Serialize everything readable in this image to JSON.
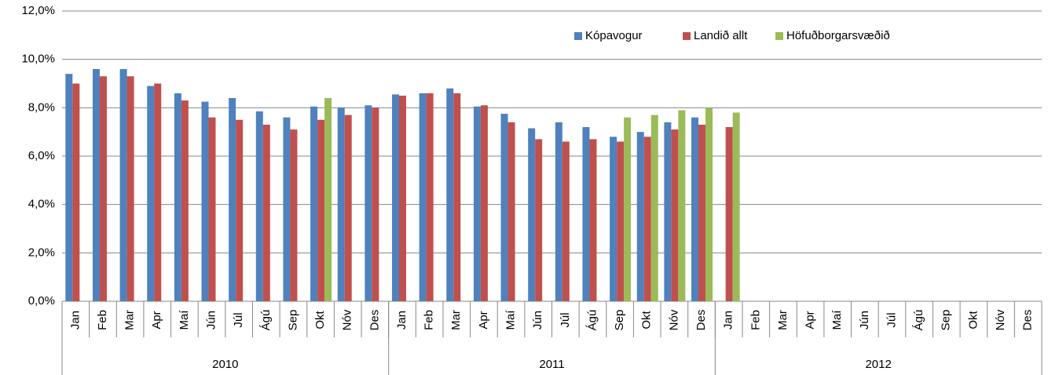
{
  "chart_data": {
    "type": "bar",
    "categories": [
      "Jan",
      "Feb",
      "Mar",
      "Apr",
      "Maí",
      "Jún",
      "Júl",
      "Ágú",
      "Sep",
      "Okt",
      "Nóv",
      "Des",
      "Jan",
      "Feb",
      "Mar",
      "Apr",
      "Maí",
      "Jún",
      "Júl",
      "Ágú",
      "Sep",
      "Okt",
      "Nóv",
      "Des",
      "Jan",
      "Feb",
      "Mar",
      "Apr",
      "Maí",
      "Jún",
      "Júl",
      "Ágú",
      "Sep",
      "Okt",
      "Nóv",
      "Des"
    ],
    "years": [
      "2010",
      "2011",
      "2012"
    ],
    "series": [
      {
        "name": "Kópavogur",
        "color": "#4f81bd",
        "values": [
          9.4,
          9.6,
          9.6,
          8.9,
          8.6,
          8.25,
          8.4,
          7.85,
          7.6,
          8.05,
          8.0,
          8.1,
          8.55,
          8.6,
          8.8,
          8.05,
          7.75,
          7.15,
          7.4,
          7.2,
          6.8,
          7.0,
          7.4,
          7.6,
          null,
          null,
          null,
          null,
          null,
          null,
          null,
          null,
          null,
          null,
          null,
          null
        ]
      },
      {
        "name": "Landið allt",
        "color": "#c0504d",
        "values": [
          9.0,
          9.3,
          9.3,
          9.0,
          8.3,
          7.6,
          7.5,
          7.3,
          7.1,
          7.5,
          7.7,
          8.0,
          8.5,
          8.6,
          8.6,
          8.1,
          7.4,
          6.7,
          6.6,
          6.7,
          6.6,
          6.8,
          7.1,
          7.3,
          7.2,
          null,
          null,
          null,
          null,
          null,
          null,
          null,
          null,
          null,
          null,
          null
        ]
      },
      {
        "name": "Höfuðborgarsvæðið",
        "color": "#9bbb59",
        "values": [
          null,
          null,
          null,
          null,
          null,
          null,
          null,
          null,
          null,
          8.4,
          null,
          null,
          null,
          null,
          null,
          null,
          null,
          null,
          null,
          null,
          7.6,
          7.7,
          7.9,
          8.0,
          7.8,
          null,
          null,
          null,
          null,
          null,
          null,
          null,
          null,
          null,
          null,
          null
        ]
      }
    ],
    "ylim": [
      0,
      12
    ],
    "yticks": [
      {
        "value": 0,
        "label": "0,0%"
      },
      {
        "value": 2,
        "label": "2,0%"
      },
      {
        "value": 4,
        "label": "4,0%"
      },
      {
        "value": 6,
        "label": "6,0%"
      },
      {
        "value": 8,
        "label": "8,0%"
      },
      {
        "value": 10,
        "label": "10,0%"
      },
      {
        "value": 12,
        "label": "12,0%"
      }
    ],
    "grid": true,
    "legend": "top-right"
  }
}
